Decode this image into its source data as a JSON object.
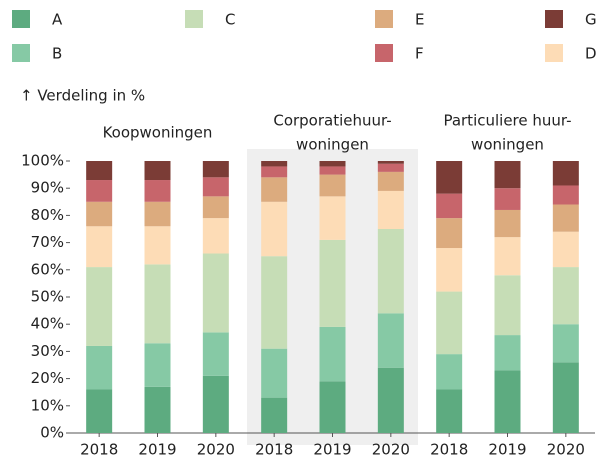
{
  "chart_data": {
    "type": "bar",
    "stacked": true,
    "ylabel": "↑ Verdeling in %",
    "groups": [
      {
        "label": [
          "Koopwoningen"
        ],
        "categories": [
          "2018",
          "2019",
          "2020"
        ]
      },
      {
        "label": [
          "Corporatiehuur-",
          "woningen"
        ],
        "categories": [
          "2018",
          "2019",
          "2020"
        ],
        "highlight": true
      },
      {
        "label": [
          "Particuliere huur-",
          "woningen"
        ],
        "categories": [
          "2018",
          "2019",
          "2020"
        ]
      }
    ],
    "series": [
      {
        "name": "A",
        "color": "#5dab80",
        "values": [
          16,
          17,
          21,
          13,
          19,
          24,
          16,
          23,
          26
        ]
      },
      {
        "name": "B",
        "color": "#86c9a5",
        "values": [
          16,
          16,
          16,
          18,
          20,
          20,
          13,
          13,
          14
        ]
      },
      {
        "name": "C",
        "color": "#c6ddb6",
        "values": [
          29,
          29,
          29,
          34,
          32,
          31,
          23,
          22,
          21
        ]
      },
      {
        "name": "D",
        "color": "#fddcb6",
        "values": [
          15,
          14,
          13,
          20,
          16,
          14,
          16,
          14,
          13
        ]
      },
      {
        "name": "E",
        "color": "#dcab7e",
        "values": [
          9,
          9,
          8,
          9,
          8,
          7,
          11,
          10,
          10
        ]
      },
      {
        "name": "F",
        "color": "#c7656b",
        "values": [
          8,
          8,
          7,
          4,
          3,
          3,
          9,
          8,
          7
        ]
      },
      {
        "name": "G",
        "color": "#7b3c36",
        "values": [
          7,
          7,
          6,
          2,
          2,
          1,
          12,
          10,
          9
        ]
      }
    ],
    "ylim": [
      0,
      100
    ],
    "yticks": [
      {
        "value": 0,
        "label": "0%"
      },
      {
        "value": 10,
        "label": "10%"
      },
      {
        "value": 20,
        "label": "20%"
      },
      {
        "value": 30,
        "label": "30%"
      },
      {
        "value": 40,
        "label": "40%"
      },
      {
        "value": 50,
        "label": "50%"
      },
      {
        "value": 60,
        "label": "60%"
      },
      {
        "value": 70,
        "label": "70%"
      },
      {
        "value": 80,
        "label": "80%"
      },
      {
        "value": 90,
        "label": "90%"
      },
      {
        "value": 100,
        "label": "100%"
      }
    ]
  }
}
